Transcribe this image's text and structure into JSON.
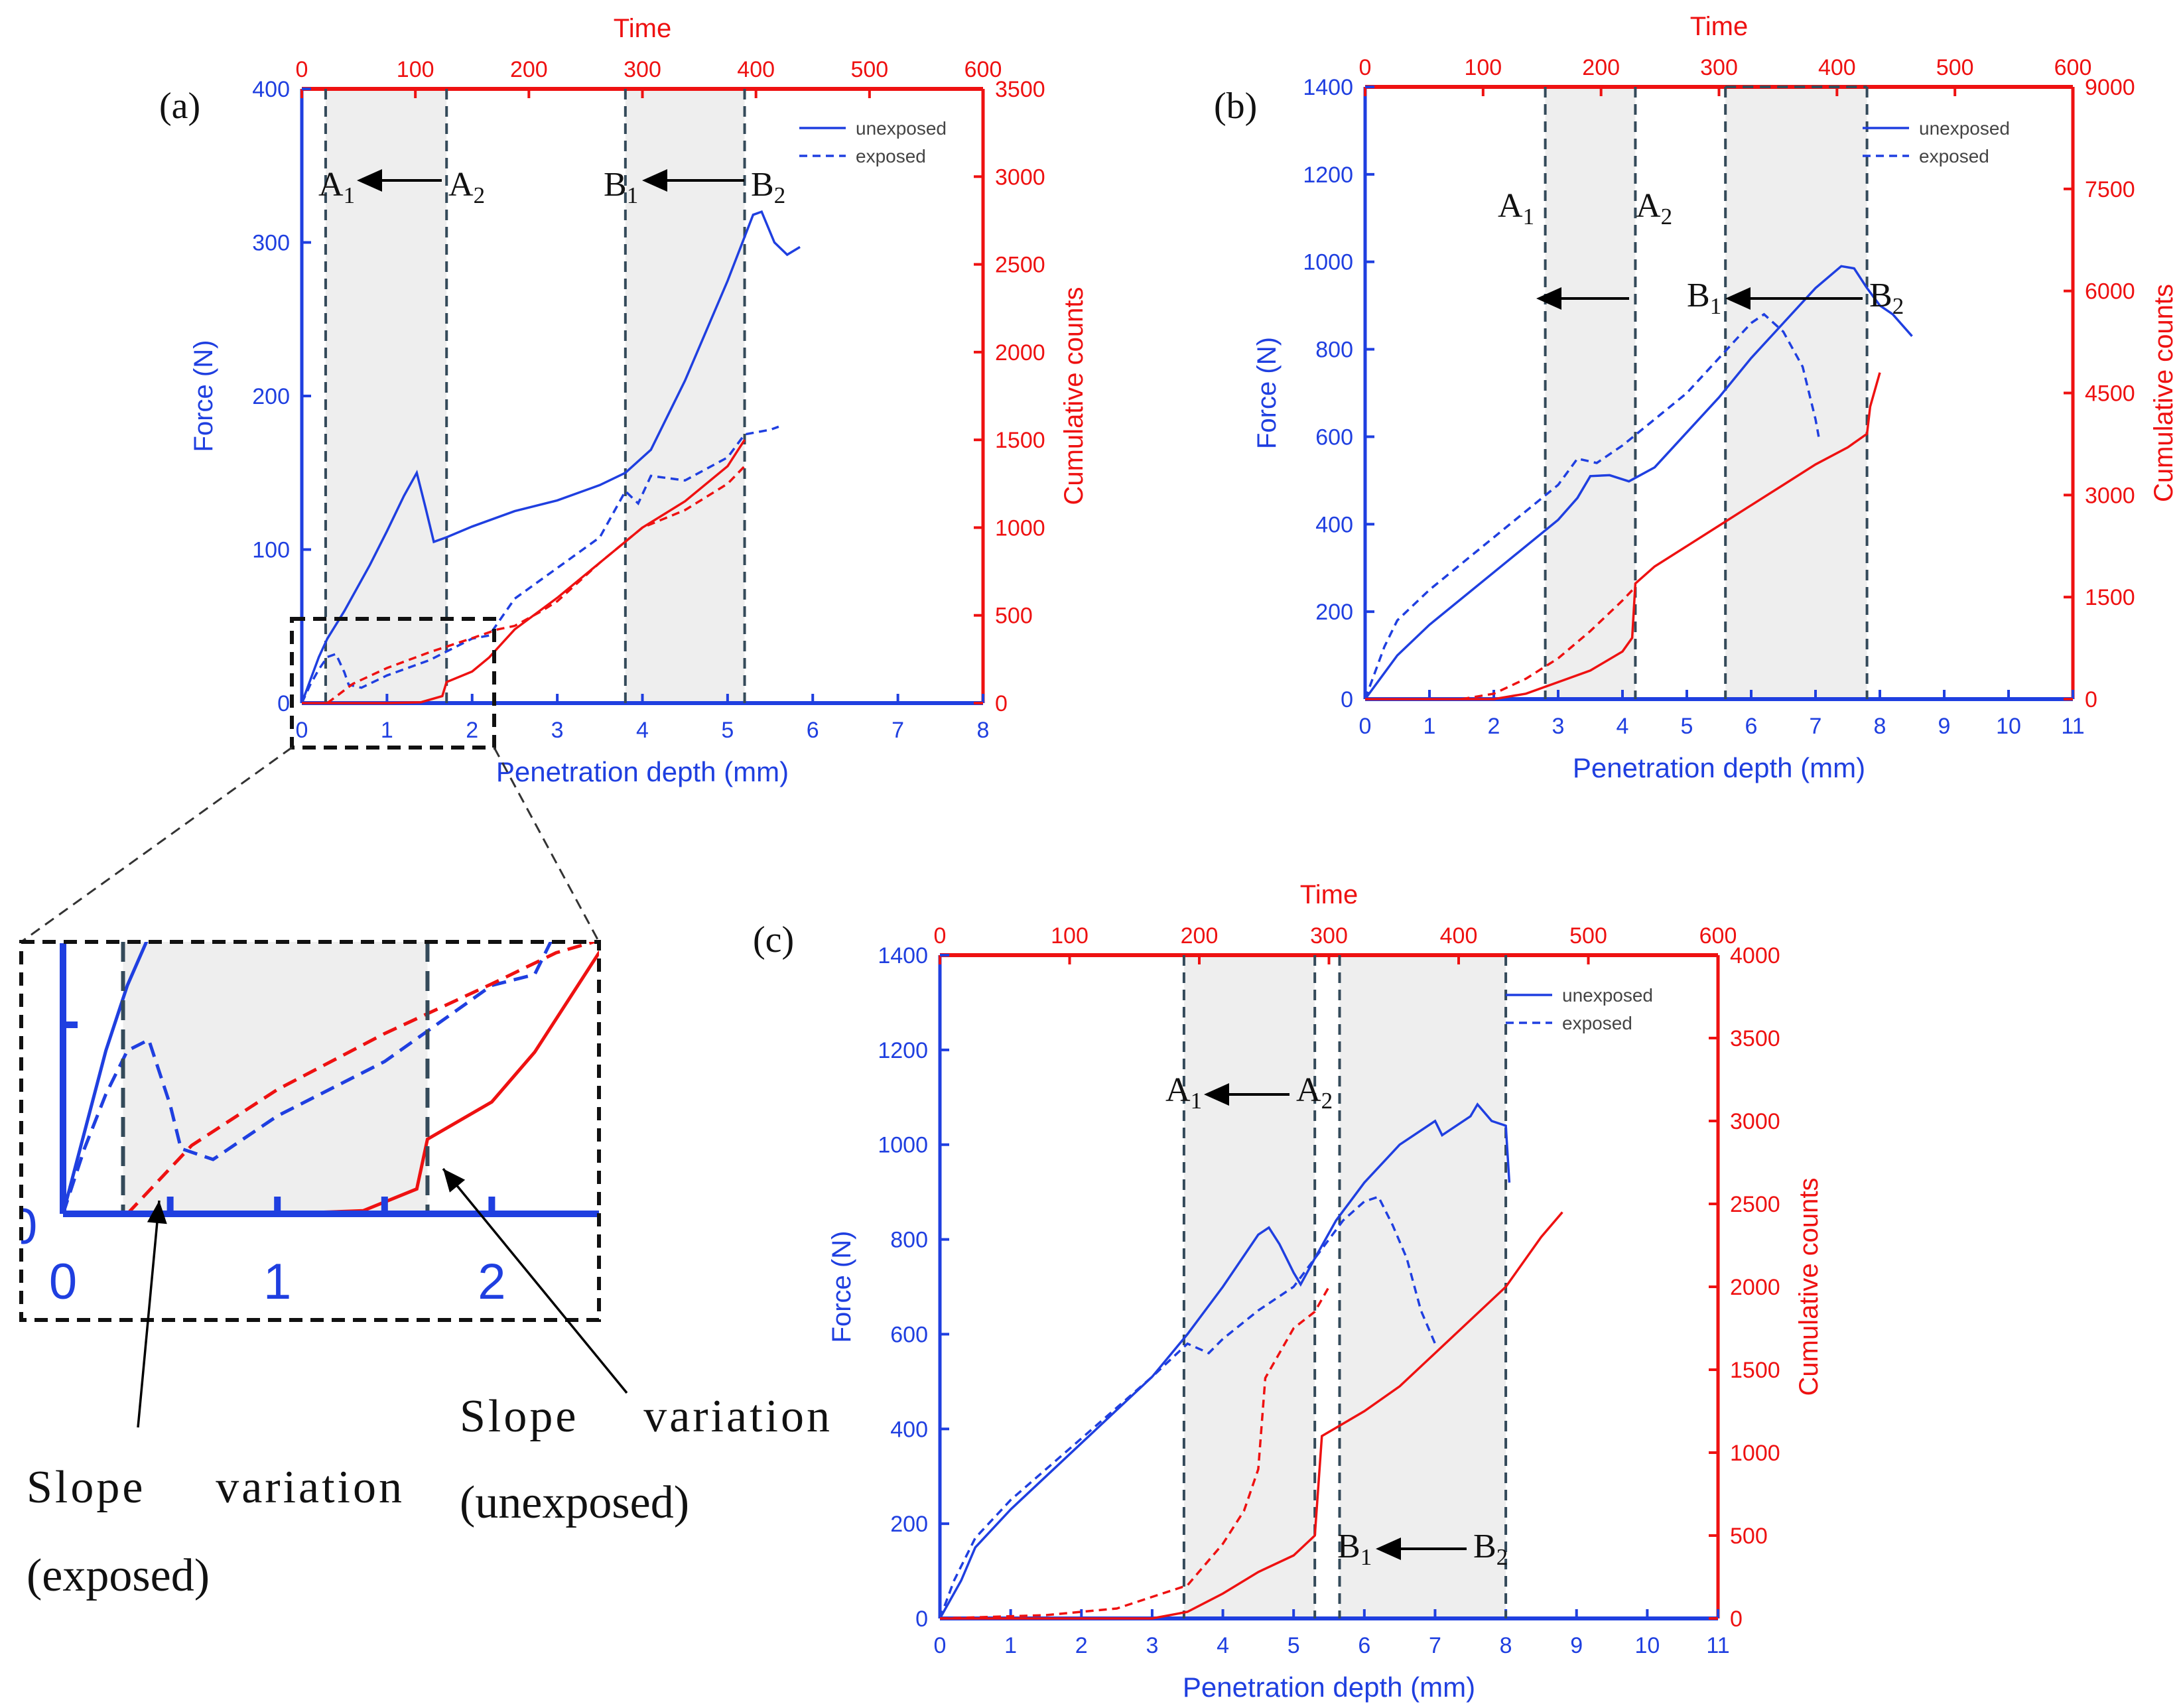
{
  "colors": {
    "force": "#1f3fe0",
    "counts": "#ee1111",
    "shade": "#eeeeee",
    "marker": "#344a5a",
    "frame": "#111111"
  },
  "panels": [
    {
      "label": "(a)",
      "x_label": "Penetration depth (mm)",
      "top_label": "Time",
      "y_label": "Force (N)",
      "y2_label": "Cumulative counts",
      "xlim": [
        0,
        8
      ],
      "xticks": [
        0,
        1,
        2,
        3,
        4,
        5,
        6,
        7,
        8
      ],
      "toplim": [
        0,
        600
      ],
      "topticks": [
        0,
        100,
        200,
        300,
        400,
        500,
        600
      ],
      "ylim": [
        0,
        400
      ],
      "yticks": [
        0,
        100,
        200,
        300,
        400
      ],
      "y2lim": [
        0,
        3500
      ],
      "y2ticks": [
        0,
        500,
        1000,
        1500,
        2000,
        2500,
        3000,
        3500
      ],
      "legend": [
        "unexposed",
        "exposed"
      ],
      "markers": [
        0.28,
        1.7,
        3.8,
        5.2
      ],
      "regions": [
        [
          0.28,
          1.7
        ],
        [
          3.8,
          5.2
        ]
      ],
      "annotations": {
        "a1": "A1",
        "a2": "A2",
        "b1": "B1",
        "b2": "B2"
      },
      "series": [
        {
          "name": "unexposed",
          "axis": "force",
          "points": [
            [
              0,
              0
            ],
            [
              0.1,
              15
            ],
            [
              0.2,
              30
            ],
            [
              0.3,
              42
            ],
            [
              0.5,
              60
            ],
            [
              0.8,
              90
            ],
            [
              1.0,
              112
            ],
            [
              1.2,
              135
            ],
            [
              1.35,
              150
            ],
            [
              1.45,
              128
            ],
            [
              1.55,
              105
            ],
            [
              1.7,
              108
            ],
            [
              2.0,
              115
            ],
            [
              2.5,
              125
            ],
            [
              3.0,
              132
            ],
            [
              3.5,
              142
            ],
            [
              3.8,
              150
            ],
            [
              4.1,
              165
            ],
            [
              4.5,
              210
            ],
            [
              5.0,
              275
            ],
            [
              5.3,
              318
            ],
            [
              5.4,
              320
            ],
            [
              5.55,
              300
            ],
            [
              5.7,
              292
            ],
            [
              5.85,
              297
            ]
          ]
        },
        {
          "name": "exposed",
          "axis": "force",
          "points": [
            [
              0,
              0
            ],
            [
              0.1,
              12
            ],
            [
              0.2,
              22
            ],
            [
              0.3,
              30
            ],
            [
              0.4,
              32
            ],
            [
              0.5,
              20
            ],
            [
              0.55,
              12
            ],
            [
              0.7,
              10
            ],
            [
              1.0,
              18
            ],
            [
              1.5,
              28
            ],
            [
              2.0,
              42
            ],
            [
              2.2,
              44
            ],
            [
              2.5,
              68
            ],
            [
              3.0,
              88
            ],
            [
              3.5,
              108
            ],
            [
              3.8,
              138
            ],
            [
              3.95,
              130
            ],
            [
              4.1,
              148
            ],
            [
              4.5,
              145
            ],
            [
              5.0,
              160
            ],
            [
              5.2,
              175
            ],
            [
              5.5,
              178
            ],
            [
              5.6,
              180
            ]
          ]
        },
        {
          "name": "unexposed",
          "axis": "counts",
          "points": [
            [
              0,
              0
            ],
            [
              0.5,
              0
            ],
            [
              1.0,
              0
            ],
            [
              1.4,
              5
            ],
            [
              1.65,
              40
            ],
            [
              1.7,
              120
            ],
            [
              2.0,
              180
            ],
            [
              2.2,
              260
            ],
            [
              2.5,
              420
            ],
            [
              3.0,
              600
            ],
            [
              3.5,
              800
            ],
            [
              4.0,
              1000
            ],
            [
              4.5,
              1150
            ],
            [
              5.0,
              1350
            ],
            [
              5.2,
              1500
            ]
          ]
        },
        {
          "name": "exposed",
          "axis": "counts",
          "points": [
            [
              0.3,
              0
            ],
            [
              0.6,
              110
            ],
            [
              1.0,
              200
            ],
            [
              1.5,
              290
            ],
            [
              2.0,
              370
            ],
            [
              2.3,
              420
            ],
            [
              2.5,
              440
            ],
            [
              2.8,
              520
            ],
            [
              3.0,
              580
            ],
            [
              3.5,
              800
            ],
            [
              4.0,
              1000
            ],
            [
              4.5,
              1100
            ],
            [
              5.0,
              1250
            ],
            [
              5.2,
              1350
            ]
          ]
        }
      ]
    },
    {
      "label": "(b)",
      "x_label": "Penetration depth (mm)",
      "top_label": "Time",
      "y_label": "Force (N)",
      "y2_label": "Cumulative counts",
      "xlim": [
        0,
        11
      ],
      "xticks": [
        0,
        1,
        2,
        3,
        4,
        5,
        6,
        7,
        8,
        9,
        10,
        11
      ],
      "toplim": [
        0,
        600
      ],
      "topticks": [
        0,
        100,
        200,
        300,
        400,
        500,
        600
      ],
      "ylim": [
        0,
        1400
      ],
      "yticks": [
        0,
        200,
        400,
        600,
        800,
        1000,
        1200,
        1400
      ],
      "y2lim": [
        0,
        9000
      ],
      "y2ticks": [
        0,
        1500,
        3000,
        4500,
        6000,
        7500,
        9000
      ],
      "legend": [
        "unexposed",
        "exposed"
      ],
      "markers": [
        2.8,
        4.2,
        5.6,
        7.8
      ],
      "regions": [
        [
          2.8,
          4.2
        ],
        [
          5.6,
          7.8
        ]
      ],
      "annotations": {
        "a1": "A1",
        "a2": "A2",
        "b1": "B1",
        "b2": "B2"
      },
      "series": [
        {
          "name": "unexposed",
          "axis": "force",
          "points": [
            [
              0,
              0
            ],
            [
              0.5,
              100
            ],
            [
              1.0,
              170
            ],
            [
              2.0,
              290
            ],
            [
              3.0,
              410
            ],
            [
              3.3,
              460
            ],
            [
              3.5,
              510
            ],
            [
              3.8,
              512
            ],
            [
              4.1,
              498
            ],
            [
              4.5,
              530
            ],
            [
              5.0,
              610
            ],
            [
              5.5,
              690
            ],
            [
              6.0,
              780
            ],
            [
              6.5,
              860
            ],
            [
              7.0,
              940
            ],
            [
              7.4,
              990
            ],
            [
              7.6,
              985
            ],
            [
              7.8,
              940
            ],
            [
              8.0,
              900
            ],
            [
              8.2,
              880
            ],
            [
              8.5,
              830
            ]
          ]
        },
        {
          "name": "exposed",
          "axis": "force",
          "points": [
            [
              0,
              0
            ],
            [
              0.3,
              120
            ],
            [
              0.5,
              180
            ],
            [
              1.0,
              250
            ],
            [
              2.0,
              370
            ],
            [
              3.0,
              490
            ],
            [
              3.3,
              550
            ],
            [
              3.6,
              540
            ],
            [
              4.0,
              580
            ],
            [
              4.5,
              640
            ],
            [
              5.0,
              700
            ],
            [
              5.5,
              780
            ],
            [
              6.0,
              860
            ],
            [
              6.2,
              880
            ],
            [
              6.5,
              840
            ],
            [
              6.8,
              760
            ],
            [
              7.0,
              640
            ],
            [
              7.05,
              600
            ]
          ]
        },
        {
          "name": "unexposed",
          "axis": "counts",
          "points": [
            [
              0,
              0
            ],
            [
              2.0,
              0
            ],
            [
              2.5,
              80
            ],
            [
              3.0,
              250
            ],
            [
              3.5,
              420
            ],
            [
              4.0,
              700
            ],
            [
              4.15,
              900
            ],
            [
              4.2,
              1700
            ],
            [
              4.5,
              1950
            ],
            [
              5.0,
              2250
            ],
            [
              5.5,
              2550
            ],
            [
              6.0,
              2850
            ],
            [
              6.5,
              3150
            ],
            [
              7.0,
              3450
            ],
            [
              7.5,
              3700
            ],
            [
              7.8,
              3900
            ],
            [
              7.85,
              4300
            ],
            [
              8.0,
              4800
            ]
          ]
        },
        {
          "name": "exposed",
          "axis": "counts",
          "points": [
            [
              1.5,
              0
            ],
            [
              2.0,
              80
            ],
            [
              2.5,
              300
            ],
            [
              3.0,
              600
            ],
            [
              3.5,
              1000
            ],
            [
              4.0,
              1450
            ],
            [
              4.2,
              1650
            ]
          ]
        }
      ]
    },
    {
      "label": "(c)",
      "x_label": "Penetration depth (mm)",
      "top_label": "Time",
      "y_label": "Force (N)",
      "y2_label": "Cumulative counts",
      "xlim": [
        0,
        11
      ],
      "xticks": [
        0,
        1,
        2,
        3,
        4,
        5,
        6,
        7,
        8,
        9,
        10,
        11
      ],
      "toplim": [
        0,
        600
      ],
      "topticks": [
        0,
        100,
        200,
        300,
        400,
        500,
        600
      ],
      "ylim": [
        0,
        1400
      ],
      "yticks": [
        0,
        200,
        400,
        600,
        800,
        1000,
        1200,
        1400
      ],
      "y2lim": [
        0,
        4000
      ],
      "y2ticks": [
        0,
        500,
        1000,
        1500,
        2000,
        2500,
        3000,
        3500,
        4000
      ],
      "legend": [
        "unexposed",
        "exposed"
      ],
      "markers": [
        3.45,
        5.3,
        5.65,
        8.0
      ],
      "regions": [
        [
          3.45,
          5.3
        ],
        [
          5.65,
          8.0
        ]
      ],
      "annotations": {
        "a1": "A1",
        "a2": "A2",
        "b1": "B1",
        "b2": "B2"
      },
      "series": [
        {
          "name": "unexposed",
          "axis": "force",
          "points": [
            [
              0,
              0
            ],
            [
              0.3,
              80
            ],
            [
              0.5,
              150
            ],
            [
              1.0,
              230
            ],
            [
              2.0,
              370
            ],
            [
              3.0,
              510
            ],
            [
              3.5,
              600
            ],
            [
              4.0,
              700
            ],
            [
              4.5,
              810
            ],
            [
              4.65,
              825
            ],
            [
              4.8,
              790
            ],
            [
              5.0,
              730
            ],
            [
              5.1,
              705
            ],
            [
              5.3,
              760
            ],
            [
              5.6,
              840
            ],
            [
              6.0,
              920
            ],
            [
              6.5,
              1000
            ],
            [
              7.0,
              1050
            ],
            [
              7.1,
              1020
            ],
            [
              7.5,
              1060
            ],
            [
              7.6,
              1085
            ],
            [
              7.8,
              1050
            ],
            [
              8.0,
              1040
            ],
            [
              8.05,
              920
            ]
          ]
        },
        {
          "name": "exposed",
          "axis": "force",
          "points": [
            [
              0,
              0
            ],
            [
              0.2,
              80
            ],
            [
              0.5,
              170
            ],
            [
              1.0,
              250
            ],
            [
              2.0,
              380
            ],
            [
              3.0,
              510
            ],
            [
              3.5,
              580
            ],
            [
              3.8,
              560
            ],
            [
              4.0,
              590
            ],
            [
              4.5,
              650
            ],
            [
              5.0,
              700
            ],
            [
              5.3,
              760
            ],
            [
              5.7,
              840
            ],
            [
              6.0,
              880
            ],
            [
              6.2,
              890
            ],
            [
              6.4,
              830
            ],
            [
              6.6,
              760
            ],
            [
              6.8,
              650
            ],
            [
              7.0,
              580
            ]
          ]
        },
        {
          "name": "unexposed",
          "axis": "counts",
          "points": [
            [
              0,
              0
            ],
            [
              3.0,
              0
            ],
            [
              3.5,
              40
            ],
            [
              4.0,
              150
            ],
            [
              4.5,
              280
            ],
            [
              5.0,
              380
            ],
            [
              5.3,
              500
            ],
            [
              5.4,
              1100
            ],
            [
              5.6,
              1150
            ],
            [
              6.0,
              1250
            ],
            [
              6.5,
              1400
            ],
            [
              7.0,
              1600
            ],
            [
              7.5,
              1800
            ],
            [
              8.0,
              2000
            ],
            [
              8.5,
              2300
            ],
            [
              8.8,
              2450
            ]
          ]
        },
        {
          "name": "exposed",
          "axis": "counts",
          "points": [
            [
              0,
              0
            ],
            [
              1.5,
              20
            ],
            [
              2.5,
              60
            ],
            [
              3.5,
              200
            ],
            [
              4.0,
              450
            ],
            [
              4.3,
              650
            ],
            [
              4.5,
              900
            ],
            [
              4.6,
              1450
            ],
            [
              5.0,
              1750
            ],
            [
              5.3,
              1850
            ],
            [
              5.5,
              2000
            ]
          ]
        }
      ]
    }
  ],
  "inset": {
    "xlim": [
      0,
      2.5
    ],
    "ylim": [
      0,
      50
    ],
    "xticks": [
      0,
      1,
      2
    ],
    "ytick_partial": "0",
    "markers": [
      0.28,
      1.7
    ],
    "region": [
      0.28,
      1.7
    ],
    "callouts": [
      {
        "line1": "Slope variation",
        "line2": "(exposed)"
      },
      {
        "line1": "Slope variation",
        "line2": "(unexposed)"
      }
    ]
  }
}
